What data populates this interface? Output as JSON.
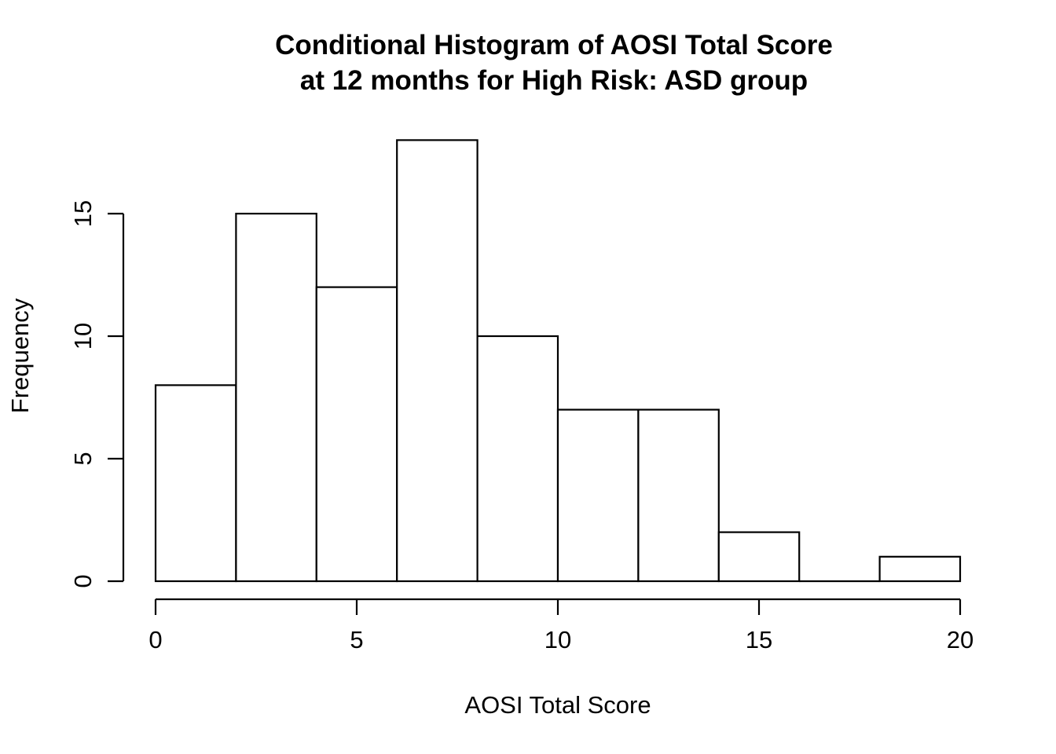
{
  "chart_data": {
    "type": "bar",
    "subtype": "histogram",
    "title_line1": "Conditional Histogram of AOSI Total Score",
    "title_line2": "at 12 months for High Risk: ASD group",
    "xlabel": "AOSI Total Score",
    "ylabel": "Frequency",
    "bin_edges": [
      0,
      2,
      4,
      6,
      8,
      10,
      12,
      14,
      16,
      18,
      20
    ],
    "counts": [
      8,
      15,
      12,
      18,
      10,
      7,
      7,
      2,
      0,
      1
    ],
    "x_ticks": [
      0,
      5,
      10,
      15,
      20
    ],
    "y_ticks": [
      0,
      5,
      10,
      15
    ],
    "xlim": [
      0,
      20
    ],
    "ylim": [
      0,
      18
    ],
    "grid": false,
    "legend": "none",
    "bar_fill": "#ffffff",
    "bar_stroke": "#000000",
    "axis_color": "#000000",
    "text_color": "#000000",
    "background_color": "#ffffff"
  }
}
